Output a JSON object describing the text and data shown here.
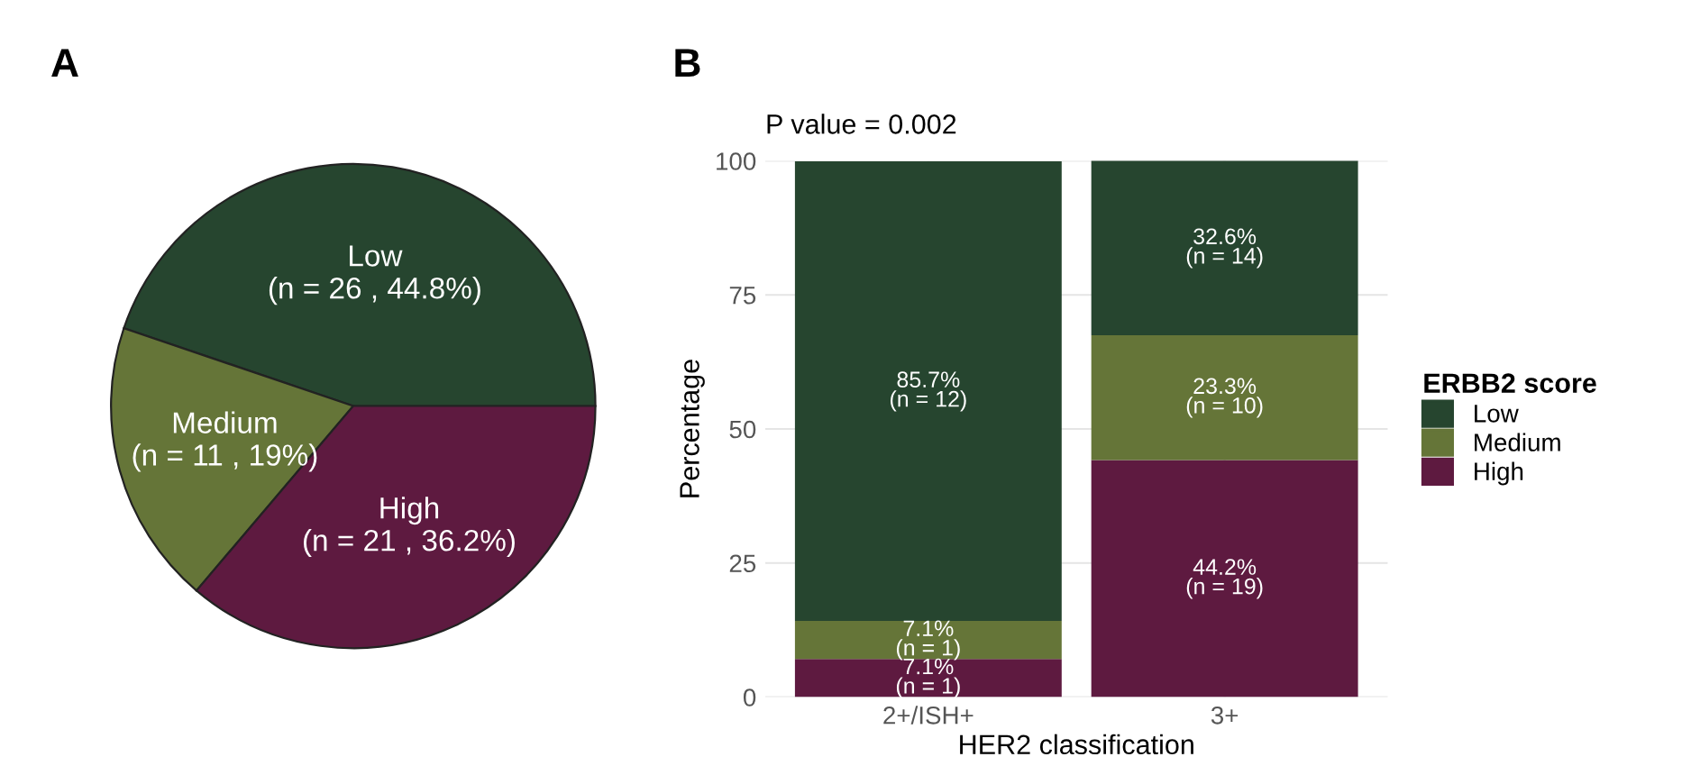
{
  "chart_data": [
    {
      "type": "pie",
      "title": "A",
      "categories": [
        "Low",
        "Medium",
        "High"
      ],
      "values": [
        44.8,
        19,
        36.2
      ],
      "colors": [
        "#26452f",
        "#657538",
        "#5e1a40"
      ],
      "value_labels": [
        "(n = 26 , 44.8%)",
        "(n = 11 , 19%)",
        "(n = 21 , 36.2%)"
      ],
      "legend": false
    },
    {
      "type": "bar",
      "title": "B",
      "subtitle": "P value = 0.002",
      "xlabel": "HER2 classification",
      "ylabel": "Percentage",
      "legend_title": "ERBB2 score",
      "categories": [
        "2+/ISH+",
        "3+"
      ],
      "stacked": true,
      "ylim": [
        0,
        100
      ],
      "yticks": [
        0,
        25,
        50,
        75,
        100
      ],
      "grid": true,
      "legend": "right",
      "series": [
        {
          "name": "High",
          "color": "#5e1a40",
          "values": [
            7.1,
            44.2
          ],
          "value_labels": [
            "7.1%\n(n = 1)",
            "44.2%\n(n = 19)"
          ]
        },
        {
          "name": "Medium",
          "color": "#657538",
          "values": [
            7.1,
            23.3
          ],
          "value_labels": [
            "7.1%\n(n = 1)",
            "23.3%\n(n = 10)"
          ]
        },
        {
          "name": "Low",
          "color": "#26452f",
          "values": [
            85.7,
            32.6
          ],
          "value_labels": [
            "85.7%\n(n = 12)",
            "32.6%\n(n = 14)"
          ]
        }
      ]
    }
  ]
}
